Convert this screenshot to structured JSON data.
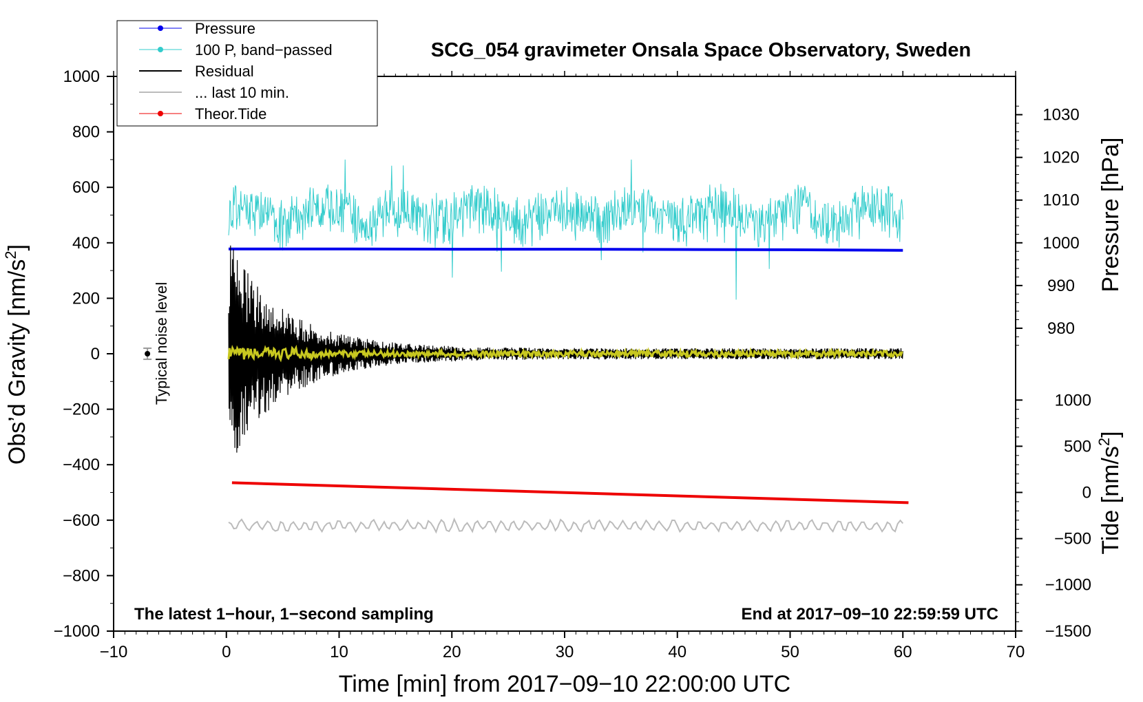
{
  "chart_data": {
    "type": "line",
    "title": "SCG_054 gravimeter Onsala Space Observatory, Sweden",
    "xlabel": "Time [min] from 2017−09−10 22:00:00 UTC",
    "xlim": [
      -10,
      70
    ],
    "x_ticks": [
      -10,
      0,
      10,
      20,
      30,
      40,
      50,
      60,
      70
    ],
    "x_tick_labels": [
      "−10",
      "0",
      "10",
      "20",
      "30",
      "40",
      "50",
      "60",
      "70"
    ],
    "left_axis": {
      "label_main": "Obs’d Gravity [nm/s",
      "label_sup": "2",
      "label_end": "]",
      "ylim": [
        -1000,
        1000
      ],
      "ticks": [
        -1000,
        -800,
        -600,
        -400,
        -200,
        0,
        200,
        400,
        600,
        800,
        1000
      ],
      "tick_labels": [
        "−1000",
        "−800",
        "−600",
        "−400",
        "−200",
        "0",
        "200",
        "400",
        "600",
        "800",
        "1000"
      ]
    },
    "pressure_axis": {
      "label": "Pressure [hPa]",
      "gravity_at_1000hPa": 400,
      "gravity_per_hPa": 15.4,
      "ticks": [
        980,
        990,
        1000,
        1010,
        1020,
        1030
      ],
      "tick_labels": [
        "980",
        "990",
        "1000",
        "1010",
        "1020",
        "1030"
      ]
    },
    "tide_axis": {
      "label_main": "Tide [nm/s",
      "label_sup": "2",
      "label_end": "]",
      "gravity_at_0": -500,
      "gravity_per_unit": 0.333,
      "ticks": [
        -1500,
        -1000,
        -500,
        0,
        500,
        1000
      ],
      "tick_labels": [
        "−1500",
        "−1000",
        "−500",
        "0",
        "500",
        "1000"
      ]
    },
    "legend": [
      {
        "label": "Pressure",
        "color": "#0000ee",
        "marker": true
      },
      {
        "label": "100 P, band−passed",
        "color": "#33cccc",
        "marker": true
      },
      {
        "label": "Residual",
        "color": "#000000",
        "marker": false
      },
      {
        "label": "... last 10 min.",
        "color": "#bbbbbb",
        "marker": false
      },
      {
        "label": "Theor.Tide",
        "color": "#ee0000",
        "marker": true
      }
    ],
    "series": [
      {
        "name": "Pressure",
        "color": "#0000ee",
        "x": [
          0.2,
          10,
          20,
          30,
          40,
          50,
          60
        ],
        "y": [
          378,
          378,
          377,
          377,
          376,
          375,
          373
        ]
      },
      {
        "name": "100 P, band−passed",
        "color": "#33cccc",
        "x_range": [
          0.2,
          60
        ],
        "center": 500,
        "amplitude": 80,
        "y_min": 195,
        "y_max": 700
      },
      {
        "name": "Residual",
        "color": "#000000",
        "x_range": [
          0.2,
          60
        ],
        "center": 0,
        "initial_amplitude": 430,
        "decay_to_amplitude": 20,
        "y_min": -440,
        "y_max": 460
      },
      {
        "name": "Smoothed residual",
        "color": "#c8c820",
        "x_range": [
          0.2,
          60
        ],
        "center": 0,
        "amplitude": 15
      },
      {
        "name": "... last 10 min.",
        "color": "#bbbbbb",
        "x_range": [
          0.2,
          60
        ],
        "center": -620,
        "amplitude": 20
      },
      {
        "name": "Theor.Tide",
        "color": "#ee0000",
        "x": [
          0.5,
          60.5
        ],
        "y": [
          -465,
          -537
        ]
      }
    ],
    "noise_marker": {
      "x": -7,
      "y": 0,
      "error": 20,
      "label": "Typical noise level"
    },
    "annotations": {
      "bottom_left": "The latest 1−hour, 1−second sampling",
      "bottom_right": "End at 2017−09−10 22:59:59 UTC"
    }
  }
}
